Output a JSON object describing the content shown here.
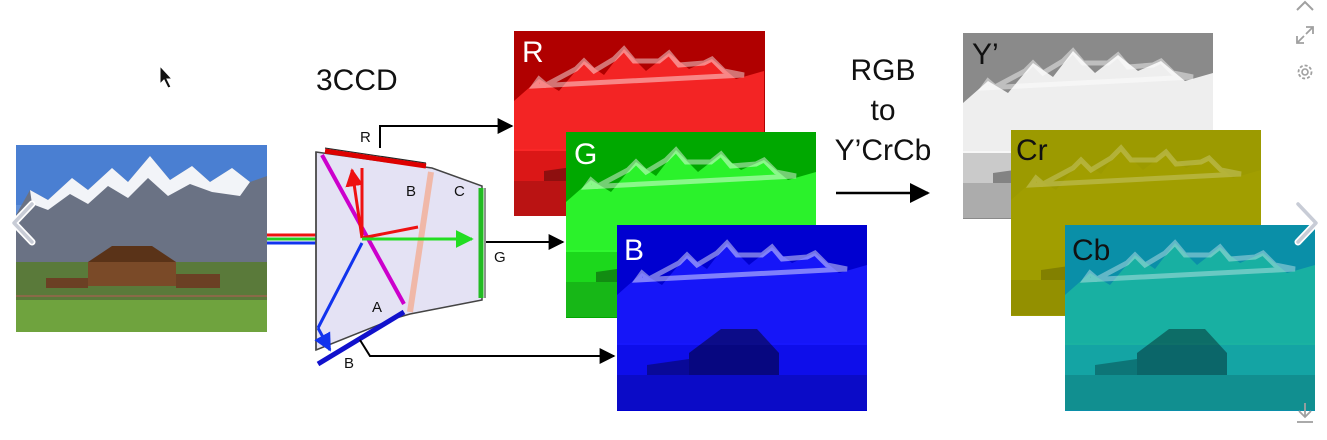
{
  "title": "3CCD",
  "prism_labels": {
    "r": "R",
    "b_top": "B",
    "c": "C",
    "g": "G",
    "a": "A",
    "b_bottom": "B"
  },
  "channels": {
    "r": "R",
    "g": "G",
    "b": "B"
  },
  "conversion": {
    "line1": "RGB",
    "line2": "to",
    "line3": "Y’CrCb"
  },
  "outputs": {
    "y": "Y’",
    "cr": "Cr",
    "cb": "Cb"
  },
  "colors": {
    "red_channel": "#c00000",
    "green_channel": "#00b400",
    "blue_channel": "#0000d8",
    "luma": "#9a9a9a",
    "cr_tint": "#9a9a00",
    "cb_tint": "#00a0a0",
    "prism_fill": "#e4e2f4",
    "dichroic_magenta": "#cc00cc",
    "dichroic_peach": "#f0b8a8"
  },
  "icons": {
    "prev": "chevron-left-icon",
    "next": "chevron-right-icon",
    "up": "chevron-up-icon",
    "expand": "expand-icon",
    "settings": "gear-icon",
    "download": "download-icon",
    "cursor": "mouse-cursor-icon"
  }
}
